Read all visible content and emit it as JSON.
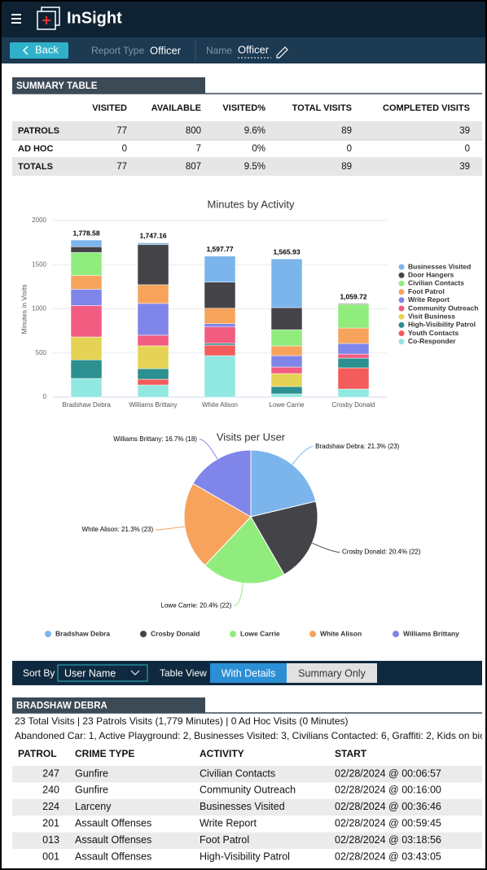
{
  "header": {
    "app_name": "InSight"
  },
  "toolbar": {
    "back": "Back",
    "report_type_label": "Report Type",
    "report_type": "Officer",
    "name_label": "Name",
    "name": "Officer"
  },
  "summary_table": {
    "title": "SUMMARY TABLE",
    "columns": [
      "VISITED",
      "AVAILABLE",
      "VISITED%",
      "TOTAL VISITS",
      "COMPLETED VISITS"
    ],
    "rows": [
      [
        "PATROLS",
        77,
        800,
        "9.6%",
        89,
        39
      ],
      [
        "AD HOC",
        0,
        7,
        "0%",
        0,
        0
      ],
      [
        "TOTALS",
        77,
        807,
        "9.5%",
        89,
        39
      ]
    ]
  },
  "chart_data": [
    {
      "type": "stacked_bar",
      "title": "Minutes by Activity",
      "y_label": "Minutes in Visits",
      "categories": [
        "Bradshaw Debra",
        "Williams Brittany",
        "White Alison",
        "Lowe Carrie",
        "Crosby Donald"
      ],
      "ylim": [
        0,
        2000
      ],
      "yticks": [
        0,
        500,
        1000,
        1500,
        2000
      ],
      "grid": true,
      "legend": "right",
      "series": [
        {
          "name": "Businesses Visited",
          "color": "#7cb5ec",
          "values": [
            75,
            18,
            295,
            552,
            0
          ]
        },
        {
          "name": "Door Hangers",
          "color": "#434348",
          "values": [
            65,
            456,
            295,
            250,
            9
          ]
        },
        {
          "name": "Civilian Contacts",
          "color": "#90ed7d",
          "values": [
            260,
            0,
            0,
            184,
            267
          ]
        },
        {
          "name": "Foot Patrol",
          "color": "#f7a35c",
          "values": [
            157,
            212,
            175,
            110,
            175
          ]
        },
        {
          "name": "Write Report",
          "color": "#8085e9",
          "values": [
            185,
            360,
            37,
            129,
            120
          ]
        },
        {
          "name": "Community Outreach",
          "color": "#f15c80",
          "values": [
            355,
            120,
            185,
            74,
            46
          ]
        },
        {
          "name": "Visit Business",
          "color": "#e4d354",
          "values": [
            260,
            258,
            0,
            147,
            0
          ]
        },
        {
          "name": "High-Visibility Patrol",
          "color": "#2b908f",
          "values": [
            210,
            120,
            20,
            83,
            110
          ]
        },
        {
          "name": "Youth Contacts",
          "color": "#f45b5b",
          "values": [
            0,
            65,
            120,
            0,
            240
          ]
        },
        {
          "name": "Co-Responder",
          "color": "#91e8e1",
          "values": [
            212,
            138,
            470,
            37,
            92
          ]
        }
      ],
      "totals": [
        1778.58,
        1747.16,
        1597.77,
        1565.93,
        1059.72
      ],
      "total_labels": [
        "1,778.58",
        "1,747.16",
        "1,597.77",
        "1,565.93",
        "1,059.72"
      ]
    },
    {
      "type": "pie",
      "title": "Visits per User",
      "categories": [
        "Bradshaw Debra",
        "Crosby Donald",
        "Lowe Carrie",
        "White Alison",
        "Williams Brittany"
      ],
      "values": [
        21.3,
        20.4,
        20.4,
        21.3,
        16.7
      ],
      "value_labels": [
        "Bradshaw Debra: 21.3% (23)",
        "Crosby Donald: 20.4% (22)",
        "Lowe Carrie: 20.4% (22)",
        "White Alison: 21.3% (23)",
        "Williams Brittany: 16.7% (18)"
      ],
      "colors": [
        "#7cb5ec",
        "#434348",
        "#90ed7d",
        "#f7a35c",
        "#8085e9"
      ],
      "legend": "bottom"
    }
  ],
  "controls": {
    "sort_label": "Sort By",
    "sort_value": "User Name",
    "view_label": "Table View",
    "view_options": [
      "With Details",
      "Summary Only"
    ]
  },
  "detail": {
    "title": "BRADSHAW DEBRA",
    "summary": "23 Total Visits | 23 Patrols Visits (1,779 Minutes) | 0 Ad Hoc Visits (0 Minutes)",
    "breakdown": "Abandoned Car: 1, Active Playground: 2, Businesses Visited: 3, Civilians Contacted: 6, Graffiti: 2, Kids on bic",
    "columns": [
      "PATROL",
      "CRIME TYPE",
      "ACTIVITY",
      "START"
    ],
    "rows": [
      [
        "247",
        "Gunfire",
        "Civilian Contacts",
        "02/28/2024 @ 00:06:57"
      ],
      [
        "240",
        "Gunfire",
        "Community Outreach",
        "02/28/2024 @ 00:16:00"
      ],
      [
        "224",
        "Larceny",
        "Businesses Visited",
        "02/28/2024 @ 00:36:46"
      ],
      [
        "201",
        "Assault Offenses",
        "Write Report",
        "02/28/2024 @ 00:59:45"
      ],
      [
        "013",
        "Assault Offenses",
        "Foot Patrol",
        "02/28/2024 @ 03:18:56"
      ],
      [
        "001",
        "Assault Offenses",
        "High-Visibility Patrol",
        "02/28/2024 @ 03:43:05"
      ]
    ]
  }
}
